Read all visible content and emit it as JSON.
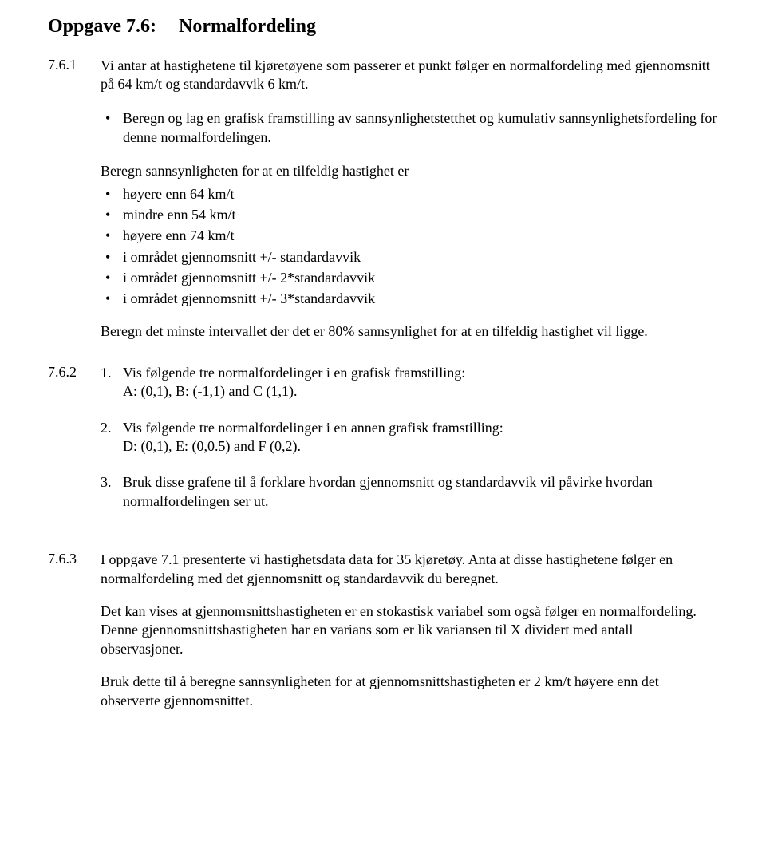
{
  "title": {
    "label": "Oppgave 7.6:",
    "text": "Normalfordeling"
  },
  "s761": {
    "num": "7.6.1",
    "intro": "Vi antar at hastighetene til kjøretøyene som passerer et punkt følger en normalfordeling med gjennomsnitt på 64 km/t og standardavvik 6 km/t.",
    "bullet1_lead": "Beregn og lag en grafisk framstilling av sannsynlighetstetthet og kumulativ sannsynlighetsfordeling for denne normalfordelingen.",
    "bullet2_lead": "Beregn sannsynligheten for at en tilfeldig hastighet er",
    "b2_items": [
      "høyere enn 64 km/t",
      "mindre enn 54 km/t",
      "høyere enn 74 km/t",
      "i området gjennomsnitt +/- standardavvik",
      "i området gjennomsnitt +/- 2*standardavvik",
      "i området gjennomsnitt +/- 3*standardavvik"
    ],
    "closing": "Beregn det minste intervallet der det er 80% sannsynlighet for at en tilfeldig hastighet vil ligge."
  },
  "s762": {
    "num": "7.6.2",
    "items": [
      {
        "n": "1.",
        "t": "Vis følgende tre normalfordelinger i en grafisk framstilling:\nA: (0,1), B: (-1,1) and C (1,1)."
      },
      {
        "n": "2.",
        "t": "Vis følgende tre normalfordelinger i en annen grafisk framstilling:\nD: (0,1), E: (0,0.5) and F (0,2)."
      },
      {
        "n": "3.",
        "t": "Bruk disse grafene til å forklare hvordan gjennomsnitt og standardavvik vil påvirke hvordan normalfordelingen ser ut."
      }
    ]
  },
  "s763": {
    "num": "7.6.3",
    "p1": "I oppgave 7.1 presenterte vi hastighetsdata data for 35 kjøretøy. Anta at disse hastighetene følger en normalfordeling med det gjennomsnitt og standardavvik du beregnet.",
    "p2": "Det kan vises at gjennomsnittshastigheten er en stokastisk variabel som også følger en normalfordeling. Denne gjennomsnittshastigheten har en varians som er lik variansen til X dividert med antall observasjoner.",
    "p3": "Bruk dette til å beregne sannsynligheten for at gjennomsnittshastigheten er 2 km/t høyere enn det observerte gjennomsnittet."
  }
}
